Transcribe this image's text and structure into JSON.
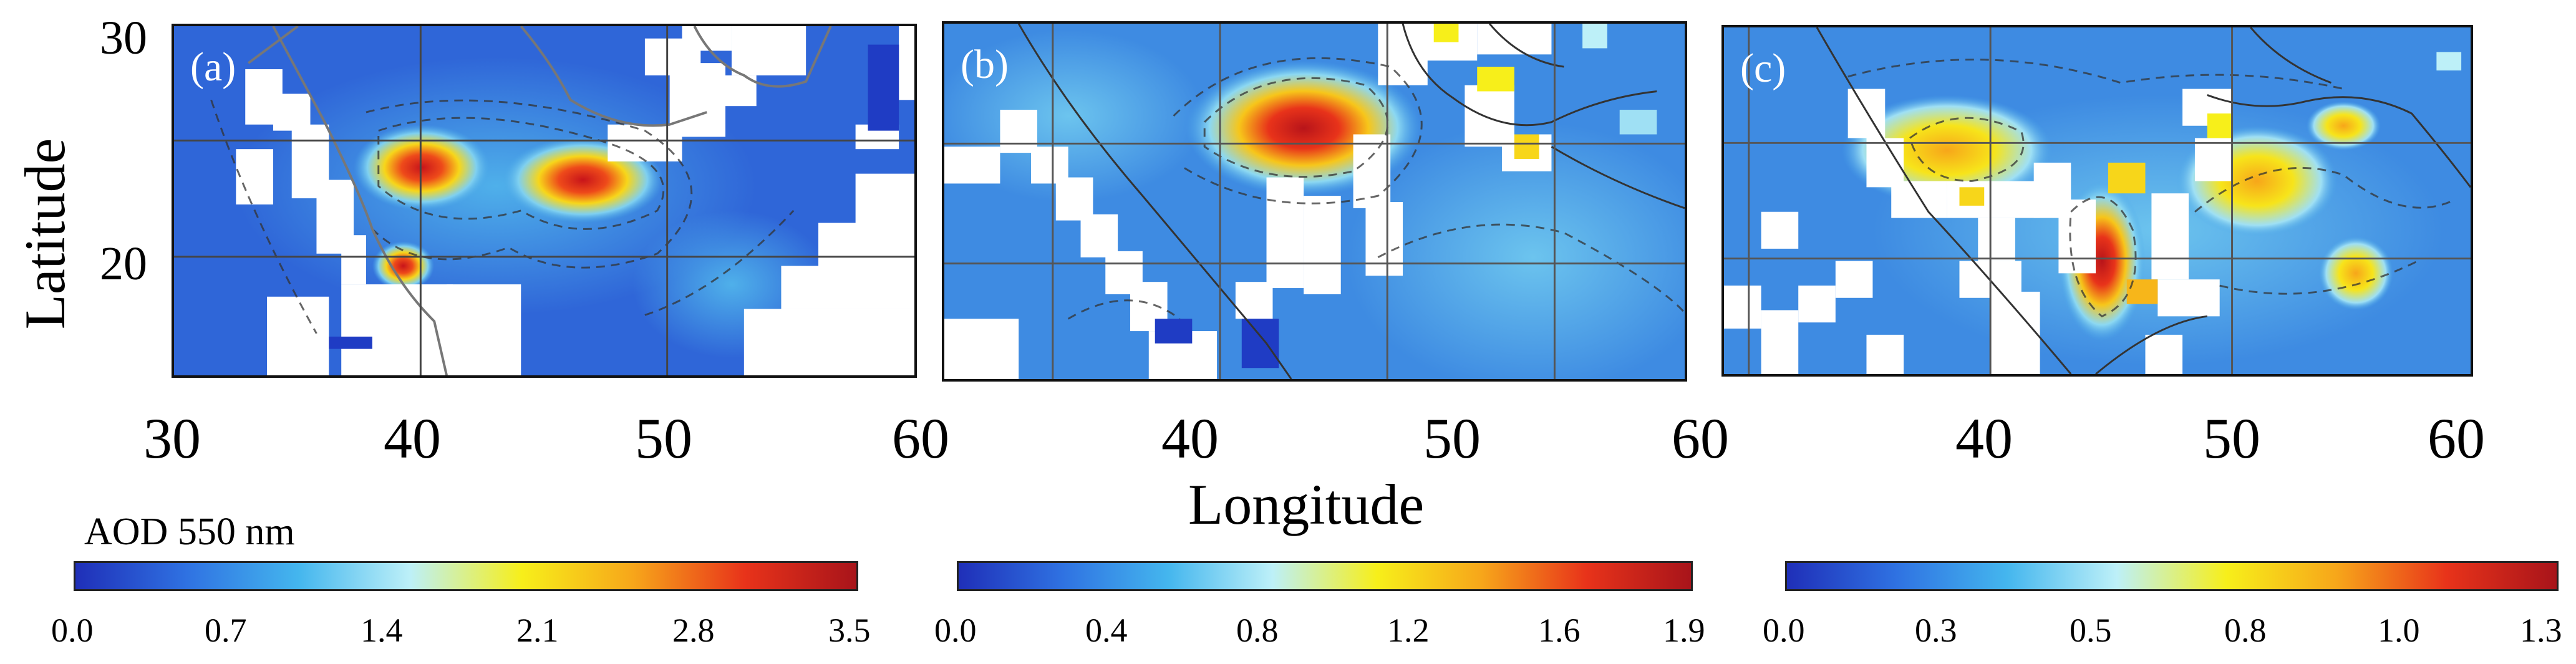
{
  "panels": [
    {
      "label": "(a)"
    },
    {
      "label": "(b)"
    },
    {
      "label": "(c)"
    }
  ],
  "y_axis": {
    "title": "Latitude",
    "ticks": [
      "30",
      "20"
    ]
  },
  "x_axis": {
    "title": "Longitude",
    "ticks_a": [
      "30",
      "40",
      "50",
      "60"
    ],
    "ticks_b": [
      "40",
      "50",
      "60"
    ],
    "ticks_c": [
      "40",
      "50",
      "60"
    ]
  },
  "colorbar": {
    "title": "AOD 550 nm",
    "colormap": [
      "#1f2fb8",
      "#2f72e2",
      "#44b6ee",
      "#bdf0f8",
      "#f7ef1a",
      "#f7a61a",
      "#e8331a",
      "#a8141a"
    ],
    "ticks_a": [
      "0.0",
      "0.7",
      "1.4",
      "2.1",
      "2.8",
      "3.5"
    ],
    "ticks_b": [
      "0.0",
      "0.4",
      "0.8",
      "1.2",
      "1.6",
      "1.9"
    ],
    "ticks_c": [
      "0.0",
      "0.3",
      "0.5",
      "0.8",
      "1.0",
      "1.3"
    ]
  },
  "colors": {
    "missing_data": "#ffffff",
    "coastline": "#555555",
    "grid": "#444444"
  }
}
